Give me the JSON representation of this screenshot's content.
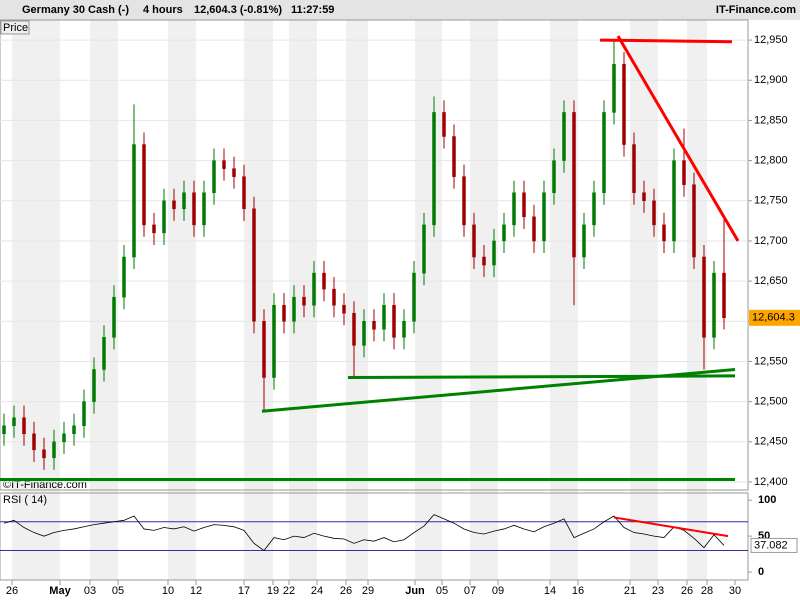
{
  "header": {
    "instrument": "Germany 30 Cash (-)",
    "interval": "4 hours",
    "quote": "12,604.3 (-0.81%)",
    "time": "11:27:59",
    "brand": "IT-Finance.com"
  },
  "chart_data": [
    {
      "type": "candlestick",
      "title": "Price",
      "watermark": "©IT-Finance.com",
      "up_color": "#007a00",
      "down_color": "#a00000",
      "open": [
        12460,
        12470,
        12480,
        12460,
        12440,
        12430,
        12450,
        12460,
        12470,
        12500,
        12540,
        12580,
        12630,
        12680,
        12820,
        12720,
        12710,
        12750,
        12740,
        12760,
        12720,
        12760,
        12800,
        12790,
        12780,
        12740,
        12600,
        12530,
        12620,
        12600,
        12630,
        12620,
        12660,
        12640,
        12620,
        12610,
        12570,
        12600,
        12590,
        12620,
        12580,
        12600,
        12660,
        12720,
        12860,
        12830,
        12780,
        12720,
        12680,
        12670,
        12700,
        12720,
        12760,
        12730,
        12700,
        12760,
        12800,
        12860,
        12680,
        12720,
        12760,
        12860,
        12920,
        12820,
        12760,
        12750,
        12720,
        12700,
        12800,
        12770,
        12680,
        12580,
        12660
      ],
      "high": [
        12485,
        12495,
        12495,
        12475,
        12455,
        12465,
        12475,
        12485,
        12515,
        12555,
        12595,
        12645,
        12695,
        12870,
        12835,
        12735,
        12765,
        12765,
        12775,
        12775,
        12775,
        12815,
        12815,
        12805,
        12795,
        12755,
        12615,
        12635,
        12635,
        12645,
        12645,
        12675,
        12675,
        12655,
        12635,
        12625,
        12615,
        12615,
        12635,
        12635,
        12615,
        12675,
        12735,
        12880,
        12875,
        12845,
        12795,
        12735,
        12695,
        12715,
        12735,
        12775,
        12775,
        12745,
        12775,
        12815,
        12875,
        12875,
        12735,
        12775,
        12875,
        12950,
        12935,
        12835,
        12775,
        12765,
        12735,
        12815,
        12840,
        12785,
        12695,
        12675,
        12730
      ],
      "low": [
        12445,
        12455,
        12445,
        12425,
        12415,
        12415,
        12435,
        12445,
        12455,
        12485,
        12525,
        12565,
        12615,
        12665,
        12705,
        12695,
        12695,
        12725,
        12725,
        12705,
        12705,
        12745,
        12775,
        12765,
        12725,
        12585,
        12490,
        12515,
        12585,
        12585,
        12605,
        12605,
        12625,
        12605,
        12595,
        12530,
        12555,
        12575,
        12575,
        12565,
        12565,
        12585,
        12645,
        12705,
        12815,
        12765,
        12705,
        12665,
        12655,
        12655,
        12685,
        12705,
        12715,
        12685,
        12685,
        12745,
        12785,
        12620,
        12665,
        12705,
        12745,
        12845,
        12805,
        12745,
        12735,
        12705,
        12685,
        12685,
        12755,
        12665,
        12540,
        12565,
        12590
      ],
      "close": [
        12470,
        12480,
        12460,
        12440,
        12430,
        12450,
        12460,
        12470,
        12500,
        12540,
        12580,
        12630,
        12680,
        12820,
        12720,
        12710,
        12750,
        12740,
        12760,
        12720,
        12760,
        12800,
        12790,
        12780,
        12740,
        12600,
        12530,
        12620,
        12600,
        12630,
        12620,
        12660,
        12640,
        12620,
        12610,
        12570,
        12600,
        12590,
        12620,
        12580,
        12600,
        12660,
        12720,
        12860,
        12830,
        12780,
        12720,
        12680,
        12670,
        12700,
        12720,
        12760,
        12730,
        12700,
        12760,
        12800,
        12860,
        12680,
        12720,
        12760,
        12860,
        12920,
        12820,
        12760,
        12750,
        12720,
        12700,
        12800,
        12770,
        12680,
        12580,
        12660,
        12604.3
      ],
      "last_label": "12,604.3",
      "xlim": [
        -0.4,
        74.4
      ],
      "ylim": [
        12390,
        12975
      ],
      "yticks": [
        {
          "value": 12400,
          "label": "12,400"
        },
        {
          "value": 12450,
          "label": "12,450"
        },
        {
          "value": 12500,
          "label": "12,500"
        },
        {
          "value": 12550,
          "label": "12,550"
        },
        {
          "value": 12600,
          "label": "12,600"
        },
        {
          "value": 12650,
          "label": "12,650"
        },
        {
          "value": 12700,
          "label": "12,700"
        },
        {
          "value": 12750,
          "label": "12,750"
        },
        {
          "value": 12800,
          "label": "12,800"
        },
        {
          "value": 12850,
          "label": "12,850"
        },
        {
          "value": 12900,
          "label": "12,900"
        },
        {
          "value": 12950,
          "label": "12,950"
        }
      ],
      "trendlines": [
        {
          "color": "#ff0000",
          "x": [
            59.6,
            72.8
          ],
          "y": [
            12950,
            12948
          ]
        },
        {
          "color": "#ff0000",
          "x": [
            61.4,
            73.4
          ],
          "y": [
            12955,
            12700
          ]
        },
        {
          "color": "#008000",
          "x": [
            25.8,
            73.1
          ],
          "y": [
            12488,
            12540
          ]
        },
        {
          "color": "#008000",
          "x": [
            34.4,
            73.1
          ],
          "y": [
            12530,
            12532
          ]
        },
        {
          "color": "#008000",
          "x": [
            -0.4,
            73.1
          ],
          "y": [
            12403,
            12403
          ]
        }
      ]
    },
    {
      "type": "line",
      "title": "RSI ( 14)",
      "color": "#000000",
      "values": [
        68,
        72,
        62,
        55,
        50,
        55,
        58,
        60,
        63,
        66,
        68,
        70,
        72,
        78,
        60,
        58,
        62,
        60,
        63,
        57,
        62,
        66,
        65,
        63,
        58,
        40,
        30,
        48,
        45,
        50,
        48,
        54,
        50,
        47,
        46,
        40,
        45,
        43,
        48,
        42,
        45,
        55,
        64,
        80,
        74,
        68,
        60,
        55,
        53,
        57,
        60,
        65,
        60,
        56,
        63,
        68,
        74,
        48,
        54,
        60,
        70,
        78,
        62,
        55,
        53,
        50,
        48,
        63,
        58,
        47,
        34,
        52,
        37.082
      ],
      "last_label": "37.082",
      "levels": [
        70,
        30
      ],
      "level_color": "#3030a0",
      "xlim": [
        -0.4,
        74.4
      ],
      "ylim": [
        -11,
        110
      ],
      "yticks": [
        100,
        50,
        0
      ],
      "trendlines": [
        {
          "color": "#ff0000",
          "x": [
            61,
            72.4
          ],
          "y": [
            76,
            50
          ]
        }
      ],
      "xticks": [
        {
          "value": 0.8,
          "label": "26"
        },
        {
          "value": 5.6,
          "label": "May"
        },
        {
          "value": 8.6,
          "label": "03"
        },
        {
          "value": 11.4,
          "label": "05"
        },
        {
          "value": 16.4,
          "label": "10"
        },
        {
          "value": 19.2,
          "label": "12"
        },
        {
          "value": 24,
          "label": "17"
        },
        {
          "value": 26.9,
          "label": "19"
        },
        {
          "value": 28.5,
          "label": "22"
        },
        {
          "value": 31.3,
          "label": "24"
        },
        {
          "value": 34.2,
          "label": "26"
        },
        {
          "value": 36.4,
          "label": "29"
        },
        {
          "value": 41.1,
          "label": "Jun"
        },
        {
          "value": 43.8,
          "label": "05"
        },
        {
          "value": 46.6,
          "label": "07"
        },
        {
          "value": 49.4,
          "label": "09"
        },
        {
          "value": 54.6,
          "label": "14"
        },
        {
          "value": 57.4,
          "label": "16"
        },
        {
          "value": 62.6,
          "label": "21"
        },
        {
          "value": 65.4,
          "label": "23"
        },
        {
          "value": 68.3,
          "label": "26"
        },
        {
          "value": 70.3,
          "label": "28"
        },
        {
          "value": 73.1,
          "label": "30"
        }
      ]
    }
  ]
}
